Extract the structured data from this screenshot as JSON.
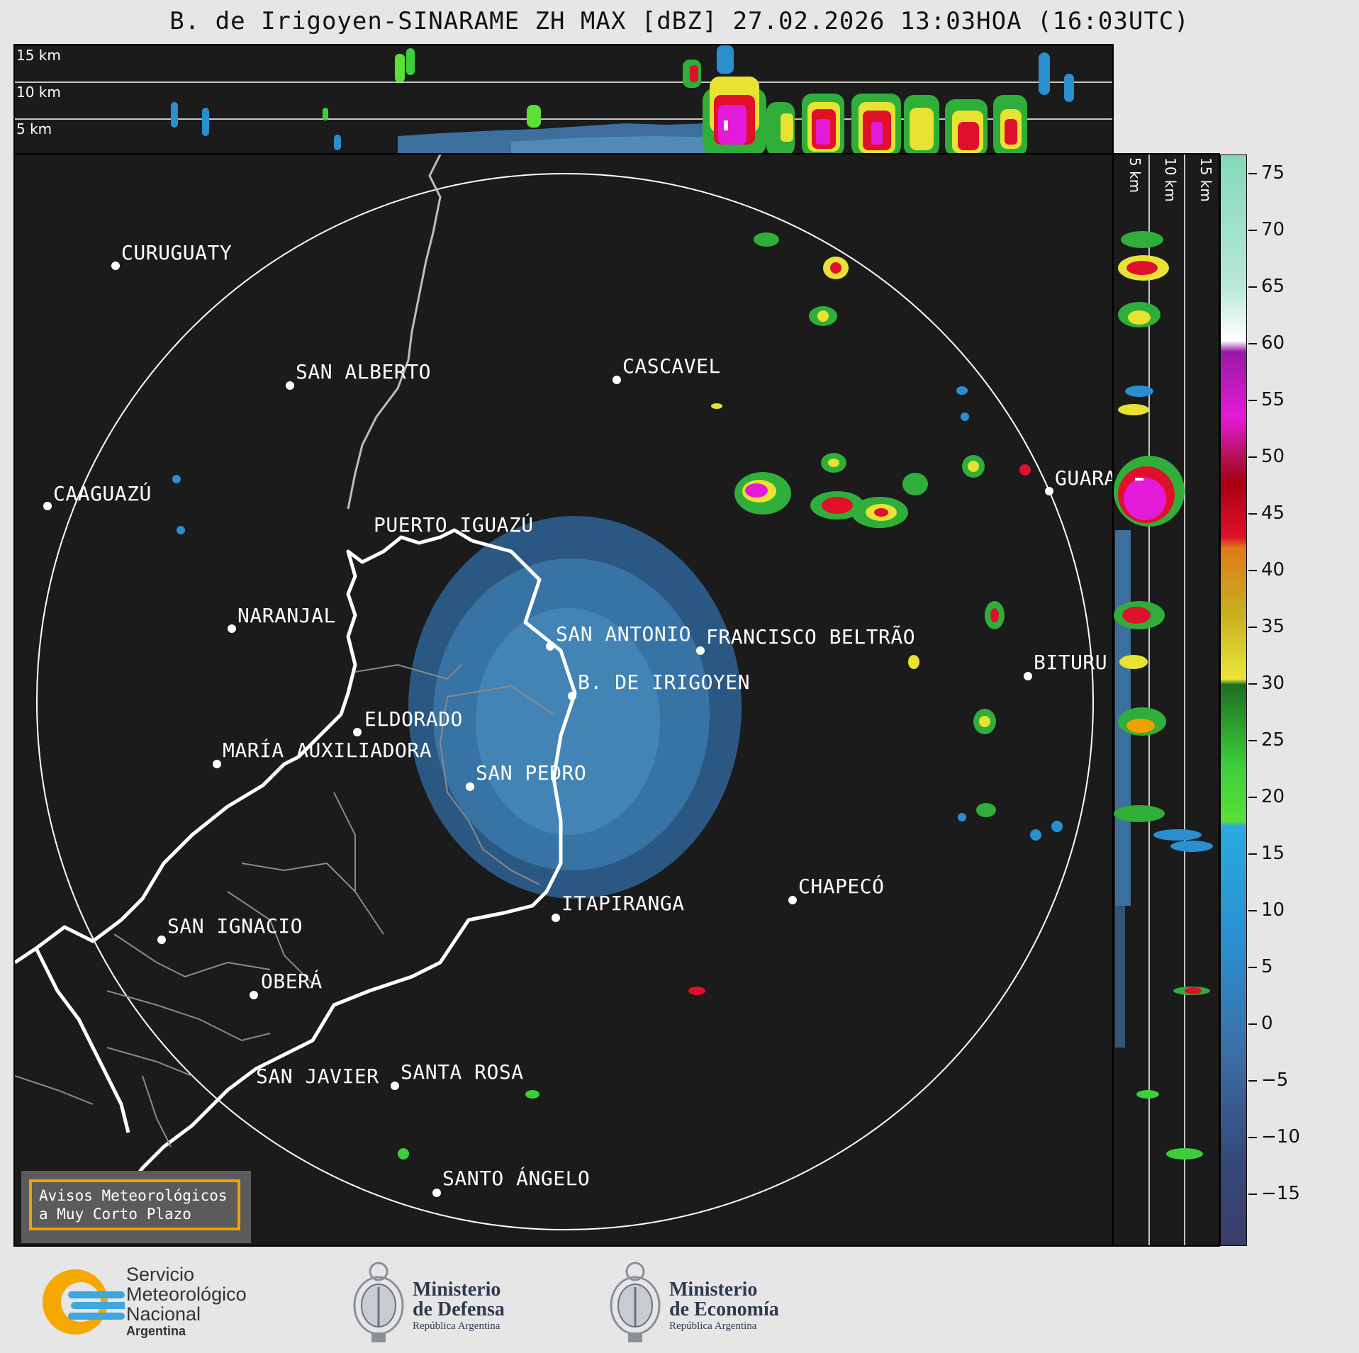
{
  "title": "B. de Irigoyen-SINARAME ZH MAX [dBZ] 27.02.2026 13:03HOA (16:03UTC)",
  "height_labels": {
    "top": [
      "15 km",
      "10 km",
      "5 km"
    ],
    "side": [
      "5 km",
      "10 km",
      "15 km"
    ]
  },
  "colorbar": {
    "ticks": [
      "75",
      "70",
      "65",
      "60",
      "55",
      "50",
      "45",
      "40",
      "35",
      "30",
      "25",
      "20",
      "15",
      "10",
      "5",
      "0",
      "−5",
      "−10",
      "−15"
    ]
  },
  "cities": [
    {
      "name": "CURUGUATY"
    },
    {
      "name": "SAN ALBERTO"
    },
    {
      "name": "CASCAVEL"
    },
    {
      "name": "CAAGUAZÚ"
    },
    {
      "name": "GUARA"
    },
    {
      "name": "PUERTO IGUAZÚ"
    },
    {
      "name": "NARANJAL"
    },
    {
      "name": "SAN ANTONIO"
    },
    {
      "name": "FRANCISCO BELTRÃO"
    },
    {
      "name": "BITURU"
    },
    {
      "name": "B. DE IRIGOYEN"
    },
    {
      "name": "ELDORADO"
    },
    {
      "name": "MARÍA AUXILIADORA"
    },
    {
      "name": "SAN PEDRO"
    },
    {
      "name": "CHAPECÓ"
    },
    {
      "name": "ITAPIRANGA"
    },
    {
      "name": "SAN IGNACIO"
    },
    {
      "name": "OBERÁ"
    },
    {
      "name": "SAN JAVIER"
    },
    {
      "name": "SANTA ROSA"
    },
    {
      "name": "SANTO ÁNGELO"
    }
  ],
  "warning_box": {
    "line1": "Avisos Meteorológicos",
    "line2": "a Muy Corto Plazo"
  },
  "logos": {
    "smn": [
      "Servicio",
      "Meteorológico",
      "Nacional",
      "Argentina"
    ],
    "defensa": [
      "Ministerio",
      "de Defensa",
      "República Argentina"
    ],
    "economia": [
      "Ministerio",
      "de Economía",
      "República Argentina"
    ]
  },
  "colors": {
    "panel_bg": "#1b1b1b",
    "logo_orange": "#f5a800",
    "logo_blue": "#3da7de",
    "warning_border": "#f0a000"
  }
}
